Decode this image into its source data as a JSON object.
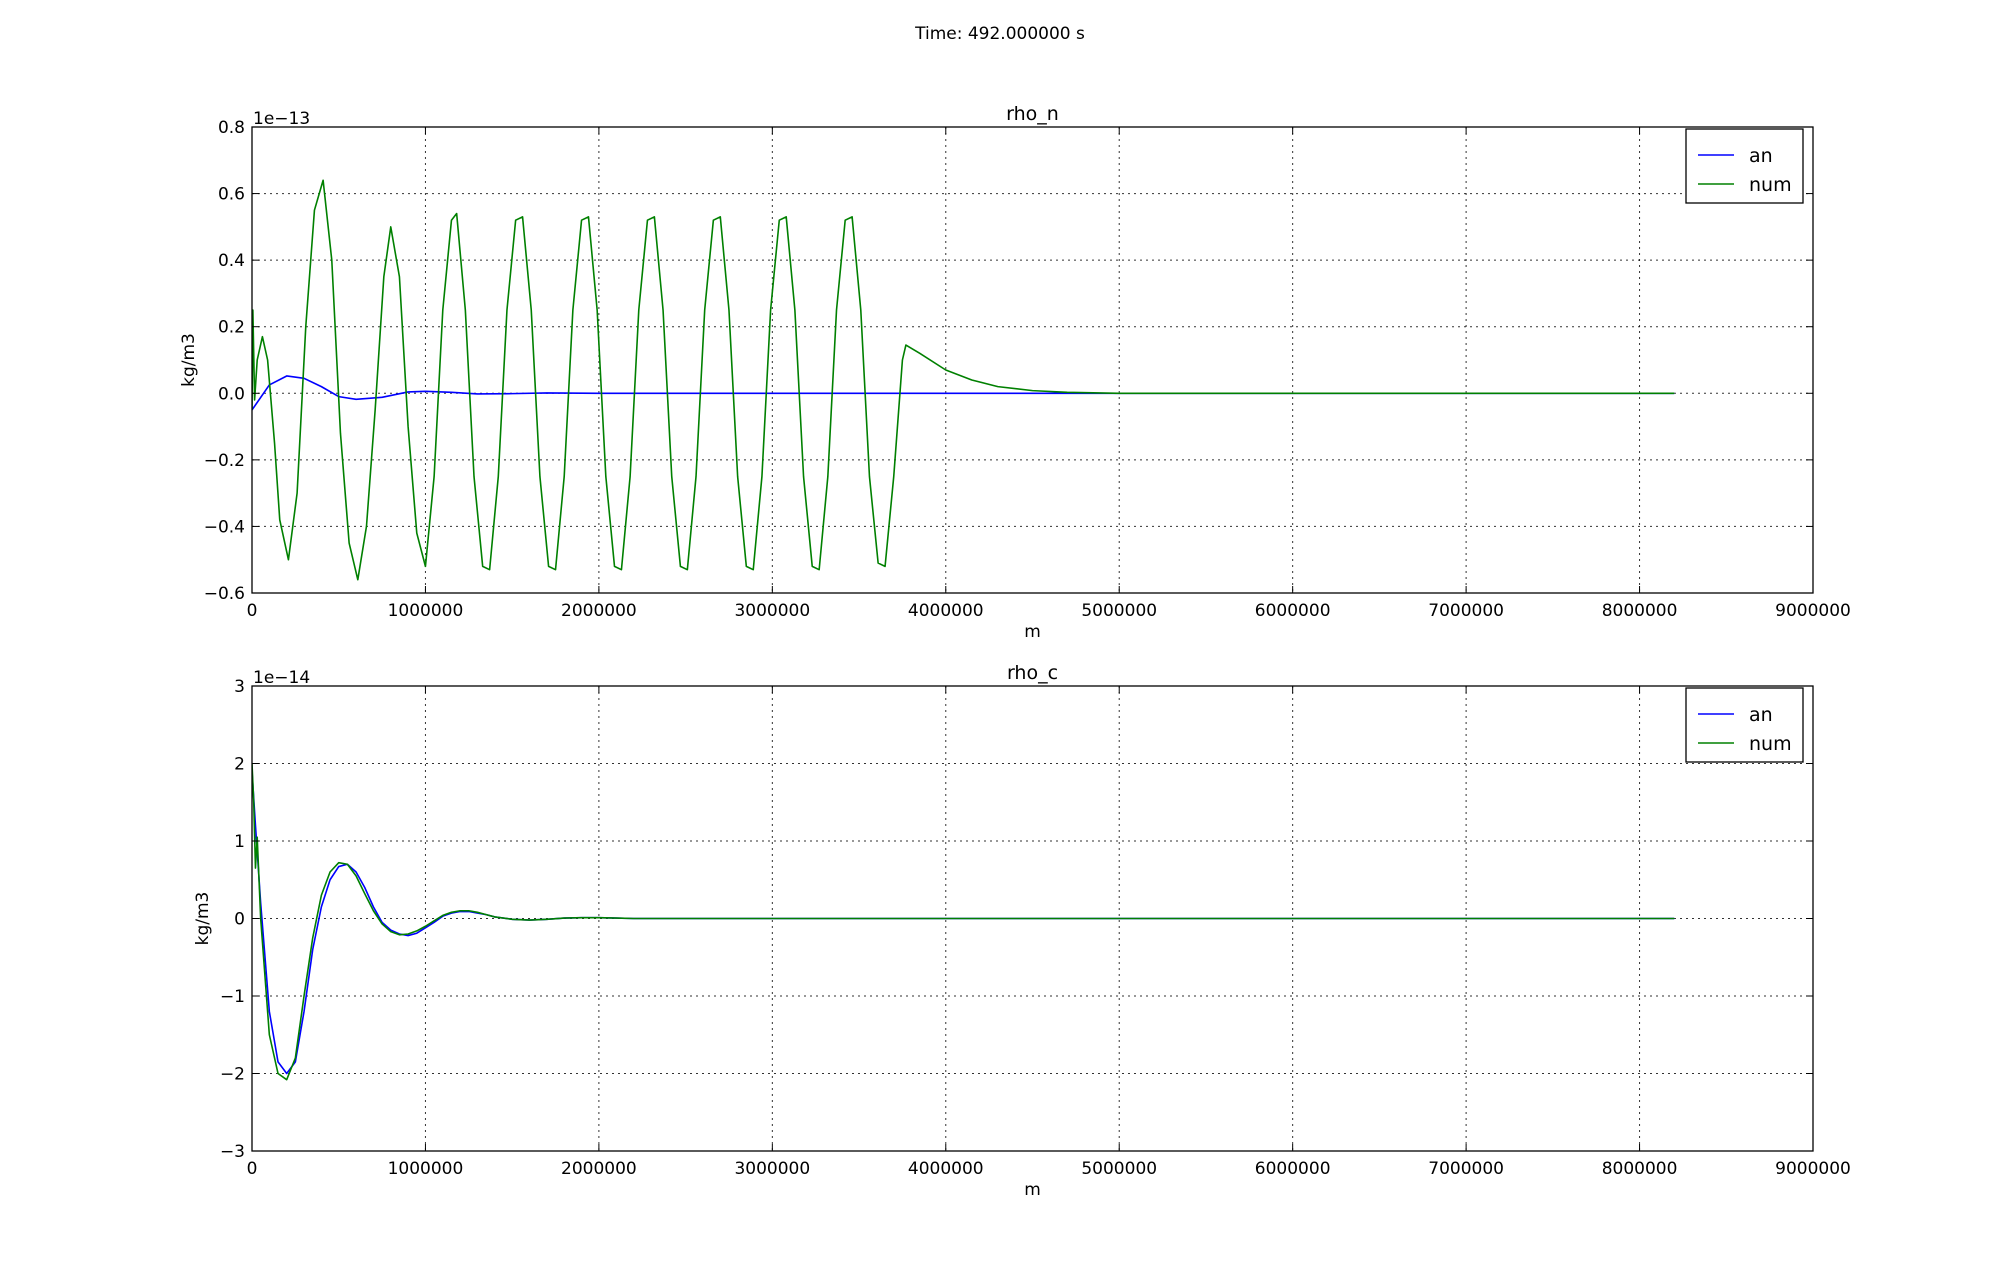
{
  "suptitle": "Time: 492.000000 s",
  "chart_data": [
    {
      "type": "line",
      "title": "rho_n",
      "xlabel": "m",
      "ylabel": "kg/m3",
      "y_offset_label": "1e−13",
      "xlim": [
        0,
        9000000
      ],
      "ylim": [
        -0.6,
        0.8
      ],
      "xticks": [
        0,
        1000000,
        2000000,
        3000000,
        4000000,
        5000000,
        6000000,
        7000000,
        8000000,
        9000000
      ],
      "xtick_labels": [
        "0",
        "1000000",
        "2000000",
        "3000000",
        "4000000",
        "5000000",
        "6000000",
        "7000000",
        "8000000",
        "9000000"
      ],
      "yticks": [
        -0.6,
        -0.4,
        -0.2,
        0.0,
        0.2,
        0.4,
        0.6,
        0.8
      ],
      "ytick_labels": [
        "−0.6",
        "−0.4",
        "−0.2",
        "0.0",
        "0.2",
        "0.4",
        "0.6",
        "0.8"
      ],
      "grid": true,
      "legend_position": "top-right",
      "series": [
        {
          "name": "an",
          "color": "#0000ff",
          "x": [
            0,
            100000,
            200000,
            300000,
            400000,
            500000,
            600000,
            750000,
            900000,
            1000000,
            1150000,
            1300000,
            1500000,
            1700000,
            2000000,
            3000000,
            4000000,
            5000000,
            6000000,
            7000000,
            8200000
          ],
          "y": [
            -0.05,
            0.025,
            0.052,
            0.045,
            0.02,
            -0.01,
            -0.018,
            -0.012,
            0.004,
            0.006,
            0.003,
            -0.002,
            -0.001,
            0.001,
            0.0,
            0.0,
            0.0,
            0.0,
            0.0,
            0.0,
            0.0
          ]
        },
        {
          "name": "num",
          "color": "#008000",
          "x": [
            0,
            5000,
            15000,
            30000,
            60000,
            90000,
            130000,
            160000,
            210000,
            260000,
            310000,
            360000,
            410000,
            460000,
            510000,
            560000,
            610000,
            660000,
            710000,
            760000,
            800000,
            850000,
            900000,
            950000,
            1000000,
            1050000,
            1100000,
            1150000,
            1180000,
            1230000,
            1280000,
            1330000,
            1370000,
            1420000,
            1470000,
            1520000,
            1560000,
            1610000,
            1660000,
            1710000,
            1750000,
            1800000,
            1850000,
            1900000,
            1940000,
            1990000,
            2040000,
            2090000,
            2130000,
            2180000,
            2230000,
            2280000,
            2320000,
            2370000,
            2420000,
            2470000,
            2510000,
            2560000,
            2610000,
            2660000,
            2700000,
            2750000,
            2800000,
            2850000,
            2890000,
            2940000,
            2990000,
            3040000,
            3080000,
            3130000,
            3180000,
            3230000,
            3270000,
            3320000,
            3370000,
            3420000,
            3460000,
            3510000,
            3560000,
            3610000,
            3650000,
            3700000,
            3750000,
            3770000,
            3850000,
            4000000,
            4150000,
            4300000,
            4500000,
            4700000,
            5000000,
            5500000,
            6000000,
            7000000,
            8200000
          ],
          "y": [
            -0.05,
            0.25,
            -0.02,
            0.1,
            0.17,
            0.1,
            -0.15,
            -0.38,
            -0.5,
            -0.3,
            0.2,
            0.55,
            0.64,
            0.4,
            -0.12,
            -0.45,
            -0.56,
            -0.4,
            -0.05,
            0.35,
            0.5,
            0.35,
            -0.1,
            -0.42,
            -0.52,
            -0.25,
            0.25,
            0.52,
            0.54,
            0.25,
            -0.25,
            -0.52,
            -0.53,
            -0.25,
            0.25,
            0.52,
            0.53,
            0.25,
            -0.25,
            -0.52,
            -0.53,
            -0.25,
            0.25,
            0.52,
            0.53,
            0.25,
            -0.25,
            -0.52,
            -0.53,
            -0.25,
            0.25,
            0.52,
            0.53,
            0.25,
            -0.25,
            -0.52,
            -0.53,
            -0.25,
            0.25,
            0.52,
            0.53,
            0.25,
            -0.25,
            -0.52,
            -0.53,
            -0.25,
            0.25,
            0.52,
            0.53,
            0.25,
            -0.25,
            -0.52,
            -0.53,
            -0.25,
            0.25,
            0.52,
            0.53,
            0.25,
            -0.25,
            -0.51,
            -0.52,
            -0.25,
            0.1,
            0.145,
            0.12,
            0.07,
            0.04,
            0.02,
            0.008,
            0.003,
            0.0,
            0.0,
            0.0,
            0.0,
            0.0
          ]
        }
      ]
    },
    {
      "type": "line",
      "title": "rho_c",
      "xlabel": "m",
      "ylabel": "kg/m3",
      "y_offset_label": "1e−14",
      "xlim": [
        0,
        9000000
      ],
      "ylim": [
        -3,
        3
      ],
      "xticks": [
        0,
        1000000,
        2000000,
        3000000,
        4000000,
        5000000,
        6000000,
        7000000,
        8000000,
        9000000
      ],
      "xtick_labels": [
        "0",
        "1000000",
        "2000000",
        "3000000",
        "4000000",
        "5000000",
        "6000000",
        "7000000",
        "8000000",
        "9000000"
      ],
      "yticks": [
        -3,
        -2,
        -1,
        0,
        1,
        2,
        3
      ],
      "ytick_labels": [
        "−3",
        "−2",
        "−1",
        "0",
        "1",
        "2",
        "3"
      ],
      "grid": true,
      "legend_position": "top-right",
      "series": [
        {
          "name": "an",
          "color": "#0000ff",
          "x": [
            0,
            20000,
            50000,
            100000,
            150000,
            200000,
            250000,
            300000,
            350000,
            400000,
            450000,
            500000,
            550000,
            600000,
            650000,
            700000,
            750000,
            800000,
            850000,
            900000,
            950000,
            1000000,
            1050000,
            1100000,
            1150000,
            1200000,
            1250000,
            1300000,
            1350000,
            1400000,
            1500000,
            1600000,
            1700000,
            1800000,
            1900000,
            2000000,
            2100000,
            2200000,
            3000000,
            5000000,
            8200000
          ],
          "y": [
            1.9,
            1.2,
            0.2,
            -1.2,
            -1.85,
            -2.0,
            -1.85,
            -1.2,
            -0.4,
            0.15,
            0.5,
            0.67,
            0.7,
            0.6,
            0.4,
            0.15,
            -0.05,
            -0.15,
            -0.2,
            -0.22,
            -0.19,
            -0.12,
            -0.05,
            0.03,
            0.07,
            0.09,
            0.09,
            0.07,
            0.05,
            0.02,
            -0.01,
            -0.02,
            -0.01,
            0.005,
            0.01,
            0.01,
            0.005,
            0.0,
            0.0,
            0.0,
            0.0
          ]
        },
        {
          "name": "num",
          "color": "#008000",
          "x": [
            0,
            10000,
            20000,
            30000,
            50000,
            100000,
            150000,
            200000,
            250000,
            300000,
            350000,
            400000,
            450000,
            500000,
            550000,
            600000,
            650000,
            700000,
            750000,
            800000,
            850000,
            900000,
            950000,
            1000000,
            1050000,
            1100000,
            1150000,
            1200000,
            1250000,
            1300000,
            1350000,
            1400000,
            1500000,
            1600000,
            1700000,
            1800000,
            1900000,
            2000000,
            2100000,
            2200000,
            3000000,
            5000000,
            8200000
          ],
          "y": [
            2.0,
            1.5,
            0.65,
            1.05,
            0.0,
            -1.5,
            -2.0,
            -2.08,
            -1.8,
            -1.0,
            -0.25,
            0.3,
            0.6,
            0.72,
            0.7,
            0.55,
            0.32,
            0.1,
            -0.07,
            -0.17,
            -0.21,
            -0.2,
            -0.16,
            -0.1,
            -0.03,
            0.04,
            0.08,
            0.1,
            0.1,
            0.08,
            0.05,
            0.02,
            -0.01,
            -0.02,
            -0.01,
            0.005,
            0.01,
            0.01,
            0.005,
            0.0,
            0.0,
            0.0,
            0.0
          ]
        }
      ]
    }
  ]
}
